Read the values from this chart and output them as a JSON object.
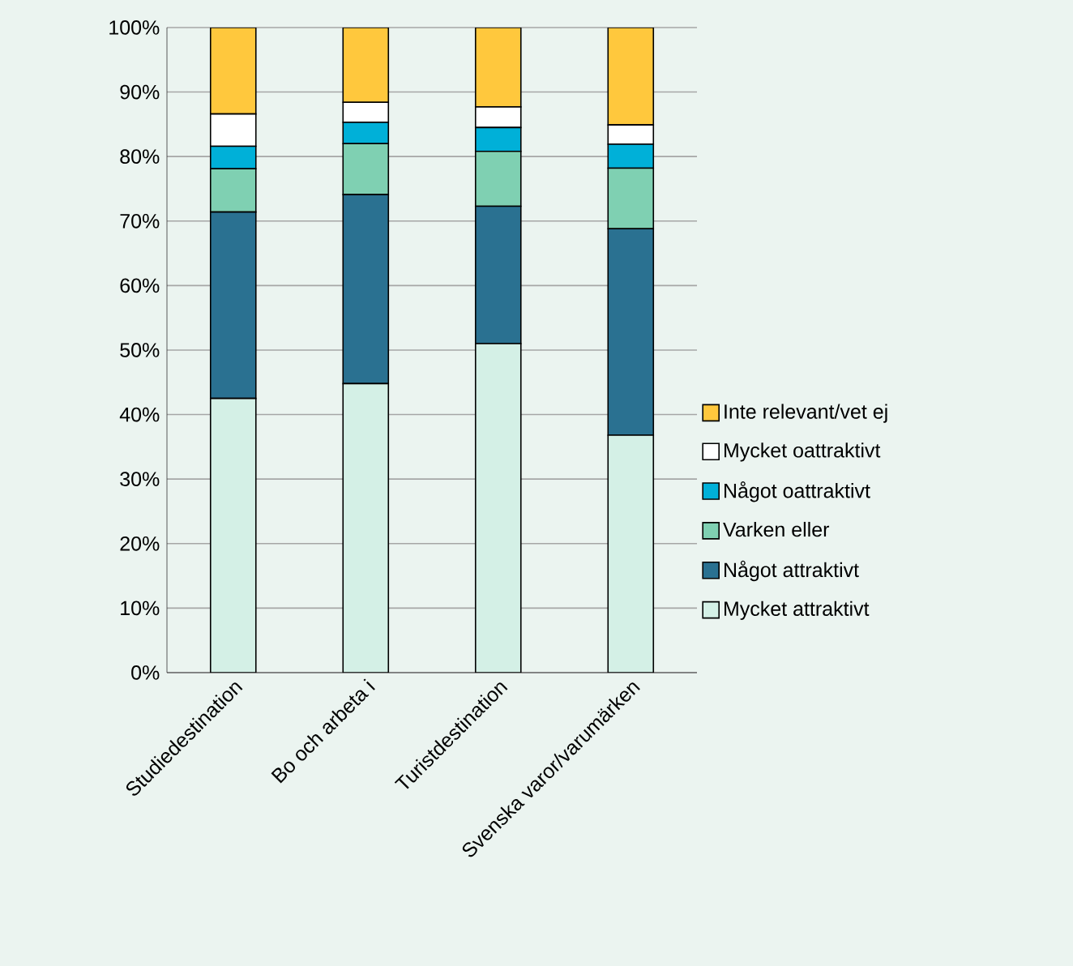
{
  "chart_data": {
    "type": "bar",
    "stacked": true,
    "categories": [
      "Studiedestination",
      "Bo och arbeta i",
      "Turistdestination",
      "Svenska varor/varumärken"
    ],
    "series": [
      {
        "name": "Mycket attraktivt",
        "color": "#d4f0e6",
        "values": [
          42.5,
          44.8,
          51.0,
          36.8
        ]
      },
      {
        "name": "Något attraktivt",
        "color": "#2a7191",
        "values": [
          28.9,
          29.3,
          21.3,
          32.0
        ]
      },
      {
        "name": "Varken eller",
        "color": "#7fd0b2",
        "values": [
          6.7,
          7.9,
          8.5,
          9.4
        ]
      },
      {
        "name": "Något oattraktivt",
        "color": "#00b0d8",
        "values": [
          3.5,
          3.3,
          3.7,
          3.7
        ]
      },
      {
        "name": "Mycket oattraktivt",
        "color": "#ffffff",
        "values": [
          5.0,
          3.1,
          3.2,
          3.0
        ]
      },
      {
        "name": "Inte relevant/vet ej",
        "color": "#ffc83d",
        "values": [
          13.4,
          11.6,
          12.3,
          15.1
        ]
      }
    ],
    "ylim": [
      0,
      100
    ],
    "yticks": [
      {
        "value": 0,
        "label": "0%"
      },
      {
        "value": 10,
        "label": "10%"
      },
      {
        "value": 20,
        "label": "20%"
      },
      {
        "value": 30,
        "label": "30%"
      },
      {
        "value": 40,
        "label": "40%"
      },
      {
        "value": 50,
        "label": "50%"
      },
      {
        "value": 60,
        "label": "60%"
      },
      {
        "value": 70,
        "label": "70%"
      },
      {
        "value": 80,
        "label": "80%"
      },
      {
        "value": 90,
        "label": "90%"
      },
      {
        "value": 100,
        "label": "100%"
      }
    ],
    "grid": "y",
    "legend": "right"
  }
}
